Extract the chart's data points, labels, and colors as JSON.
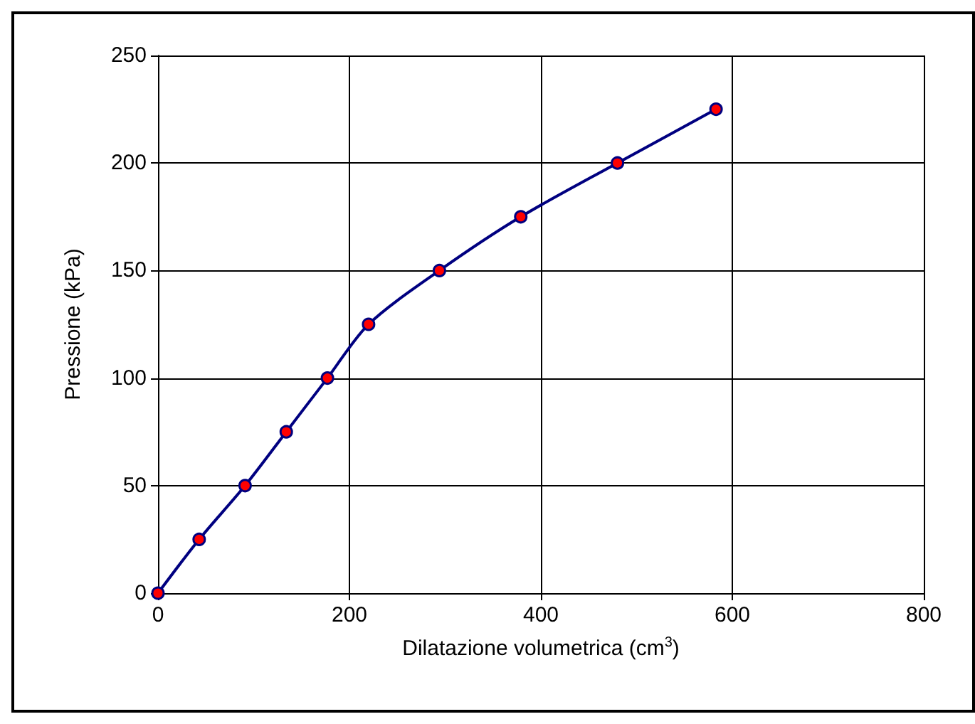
{
  "chart_data": {
    "type": "line",
    "xlabel": "Dilatazione volumetrica (cm$^{3}$)",
    "ylabel": "Pressione (kPa)",
    "x": [
      0,
      43,
      91,
      134,
      177,
      220,
      294,
      379,
      480,
      583
    ],
    "series": [
      {
        "color": "#000080",
        "values": [
          0,
          25,
          50,
          75,
          100,
          125,
          150,
          175,
          200,
          225
        ]
      }
    ],
    "xlim": [
      0,
      800
    ],
    "xticks": [
      0,
      200,
      400,
      600,
      800
    ],
    "ylim": [
      0,
      250
    ],
    "yticks": [
      0,
      50,
      100,
      150,
      200,
      250
    ],
    "grid": true,
    "marker": "circle",
    "line_style": "solid"
  }
}
